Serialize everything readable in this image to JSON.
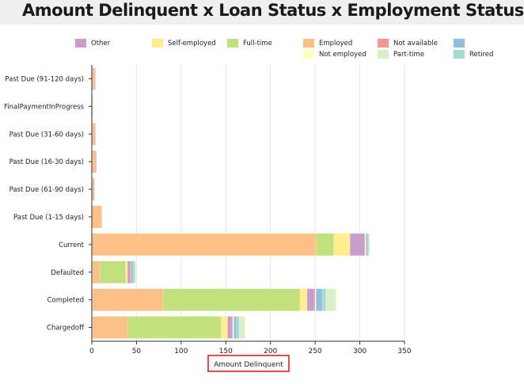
{
  "header": {
    "title": "Amount Delinquent x Loan Status x Employment Status"
  },
  "chart_data": {
    "type": "bar",
    "orientation": "horizontal",
    "stacked": true,
    "title": "Amount Delinquent x Loan Status x Employment Status",
    "xlabel": "Amount Delinquent",
    "ylabel": "",
    "xlim": [
      0,
      350
    ],
    "xticks": [
      0,
      50,
      100,
      150,
      200,
      250,
      300,
      350
    ],
    "grid": true,
    "legend_position": "top",
    "categories": [
      "Past Due (91-120 days)",
      "FinalPaymentInProgress",
      "Past Due (31-60 days)",
      "Past Due (16-30 days)",
      "Past Due (61-90 days)",
      "Past Due (1-15 days)",
      "Current",
      "Defaulted",
      "Completed",
      "Chargedoff"
    ],
    "series": [
      {
        "name": "",
        "color": "#d3d3d3",
        "values": [
          0,
          0,
          0,
          0,
          0,
          0,
          0,
          1,
          1,
          1
        ]
      },
      {
        "name": "Employed",
        "color": "#fdc086",
        "values": [
          3,
          1,
          3,
          4,
          2,
          11,
          251,
          8,
          79,
          39
        ]
      },
      {
        "name": "Full-time",
        "color": "#c2e07c",
        "values": [
          0,
          0,
          0,
          0,
          0,
          0,
          20,
          29,
          153,
          105
        ]
      },
      {
        "name": "Self-employed",
        "color": "#ffef8a",
        "values": [
          0,
          0,
          0,
          0,
          0,
          0,
          18,
          2,
          8,
          7
        ]
      },
      {
        "name": "Other",
        "color": "#c89ccb",
        "values": [
          1,
          0,
          1,
          1,
          1,
          0,
          16,
          3,
          8,
          5
        ]
      },
      {
        "name": "Not available",
        "color": "#f7968e",
        "values": [
          0,
          0,
          0,
          0,
          0,
          0,
          1,
          1,
          1,
          1
        ]
      },
      {
        "name": "Not employed",
        "color": "#ffffc0",
        "values": [
          0,
          0,
          0,
          0,
          0,
          0,
          1,
          0,
          1,
          1
        ]
      },
      {
        "name": "",
        "color": "#92bfe0",
        "values": [
          0,
          0,
          0,
          0,
          0,
          0,
          2,
          2,
          7,
          3
        ]
      },
      {
        "name": "Retired",
        "color": "#a4dbd0",
        "values": [
          0,
          0,
          0,
          0,
          0,
          0,
          1,
          2,
          4,
          3
        ]
      },
      {
        "name": "Part-time",
        "color": "#d8efca",
        "values": [
          0,
          0,
          0,
          0,
          0,
          1,
          1,
          2,
          11,
          6
        ]
      },
      {
        "name": "",
        "color": "#fdf5a8",
        "values": [
          0,
          0,
          0,
          0,
          0,
          0,
          0,
          0,
          1,
          1
        ]
      }
    ],
    "legend": [
      {
        "name": "Other",
        "color": "#c89ccb"
      },
      {
        "name": "Self-employed",
        "color": "#ffef8a"
      },
      {
        "name": "Full-time",
        "color": "#c2e07c"
      },
      {
        "name": "Employed",
        "color": "#fdc086"
      },
      {
        "name": "Not available",
        "color": "#f7968e"
      },
      {
        "name": "",
        "color": "#92bfe0"
      },
      {
        "name": "Not employed",
        "color": "#ffffc0"
      },
      {
        "name": "Part-time",
        "color": "#d8efca"
      },
      {
        "name": "Retired",
        "color": "#a4dbd0"
      }
    ]
  }
}
